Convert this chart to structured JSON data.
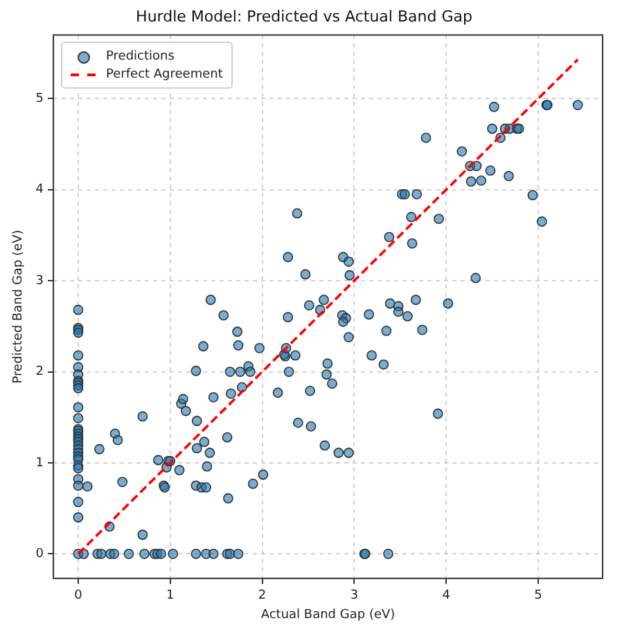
{
  "chart_data": {
    "type": "scatter",
    "title": "Hurdle Model: Predicted vs Actual Band Gap",
    "xlabel": "Actual Band Gap (eV)",
    "ylabel": "Predicted Band Gap (eV)",
    "xlim": [
      -0.27,
      5.7
    ],
    "ylim": [
      -0.27,
      5.7
    ],
    "xticks": [
      0,
      1,
      2,
      3,
      4,
      5
    ],
    "yticks": [
      0,
      1,
      2,
      3,
      4,
      5
    ],
    "grid": true,
    "legend": "top left",
    "series": [
      {
        "name": "Predictions",
        "color": "#1f77b4",
        "marker": "circle",
        "x": [
          0,
          0,
          0,
          0,
          0,
          0,
          0,
          0,
          0,
          0,
          0,
          0,
          0,
          0,
          0,
          0,
          0,
          0,
          0,
          0,
          0,
          0,
          0,
          0,
          0,
          0,
          0,
          0,
          0,
          0,
          0,
          0.06,
          0.21,
          0.25,
          0.35,
          0.39,
          0.55,
          0.72,
          0.83,
          0.86,
          0.9,
          1.03,
          1.28,
          1.39,
          1.47,
          1.62,
          1.65,
          1.74,
          3.11,
          3.12,
          3.37,
          0.1,
          0.23,
          0.4,
          0.43,
          0.48,
          0.34,
          0.7,
          0.7,
          0.87,
          0.93,
          0.94,
          0.96,
          0.98,
          1.0,
          1.1,
          1.12,
          1.14,
          1.17,
          1.28,
          1.29,
          1.29,
          1.28,
          1.34,
          1.39,
          1.36,
          1.37,
          1.4,
          1.43,
          1.44,
          1.47,
          1.58,
          1.62,
          1.63,
          1.65,
          1.76,
          1.66,
          1.73,
          1.74,
          1.78,
          1.85,
          1.87,
          1.9,
          1.97,
          2.01,
          2.17,
          2.25,
          2.24,
          2.26,
          2.28,
          2.29,
          2.36,
          2.39,
          2.51,
          2.67,
          2.63,
          2.53,
          2.52,
          2.71,
          2.7,
          2.76,
          2.68,
          2.83,
          2.94,
          2.87,
          2.91,
          2.88,
          2.94,
          3.16,
          3.19,
          3.32,
          3.35,
          3.39,
          3.48,
          3.48,
          3.58,
          3.67,
          3.74,
          3.91,
          4.02,
          4.32,
          2.28,
          2.47,
          2.38,
          2.88,
          2.94,
          2.95,
          3.38,
          3.62,
          3.63,
          3.52,
          3.55,
          3.68,
          3.78,
          3.92,
          4.17,
          4.26,
          4.33,
          4.27,
          4.38,
          4.48,
          4.52,
          4.5,
          4.59,
          4.64,
          4.69,
          4.77,
          4.79,
          4.68,
          4.94,
          5.04,
          5.09,
          5.1,
          5.43
        ],
        "values": [
          2.68,
          2.48,
          2.46,
          2.43,
          2.18,
          2.05,
          1.97,
          1.9,
          1.88,
          1.85,
          1.82,
          1.61,
          1.49,
          1.37,
          1.35,
          1.32,
          1.29,
          1.26,
          1.23,
          1.19,
          1.15,
          1.11,
          1.07,
          1.04,
          0.97,
          0.94,
          0.82,
          0.75,
          0.57,
          0.4,
          0,
          0,
          0,
          0,
          0,
          0,
          0,
          0,
          0,
          0,
          0,
          0,
          0,
          0,
          0,
          0,
          0,
          0,
          0,
          0,
          0,
          0.74,
          1.15,
          1.32,
          1.25,
          0.79,
          0.3,
          1.51,
          0.21,
          1.03,
          0.75,
          0.73,
          0.95,
          1.02,
          1.02,
          0.92,
          1.65,
          1.7,
          1.57,
          2.01,
          1.46,
          1.16,
          0.75,
          0.73,
          0.73,
          2.28,
          1.23,
          0.96,
          1.11,
          2.79,
          1.72,
          2.62,
          1.28,
          0.61,
          2.0,
          2.0,
          1.76,
          2.44,
          2.29,
          1.83,
          2.06,
          2.0,
          0.77,
          2.26,
          0.87,
          1.77,
          2.17,
          2.19,
          2.26,
          2.6,
          2.0,
          2.18,
          1.44,
          2.73,
          2.79,
          2.68,
          1.4,
          1.79,
          2.09,
          1.97,
          1.87,
          1.19,
          1.11,
          1.11,
          2.62,
          2.59,
          2.55,
          2.38,
          2.63,
          2.18,
          2.08,
          2.45,
          2.75,
          2.72,
          2.66,
          2.61,
          2.79,
          2.46,
          1.54,
          2.75,
          3.03,
          3.26,
          3.07,
          3.74,
          3.26,
          3.21,
          3.06,
          3.48,
          3.7,
          3.41,
          3.95,
          3.95,
          3.95,
          4.57,
          3.68,
          4.42,
          4.26,
          4.26,
          4.09,
          4.1,
          4.21,
          4.91,
          4.67,
          4.57,
          4.67,
          4.67,
          4.67,
          4.67,
          4.15,
          3.94,
          3.65,
          4.93,
          4.93,
          4.93
        ]
      },
      {
        "type": "line",
        "name": "Perfect Agreement",
        "color": "#ff0000",
        "line_style": "dashed",
        "marker": "none",
        "x": [
          0,
          5.43
        ],
        "values": [
          0,
          5.43
        ]
      }
    ]
  }
}
